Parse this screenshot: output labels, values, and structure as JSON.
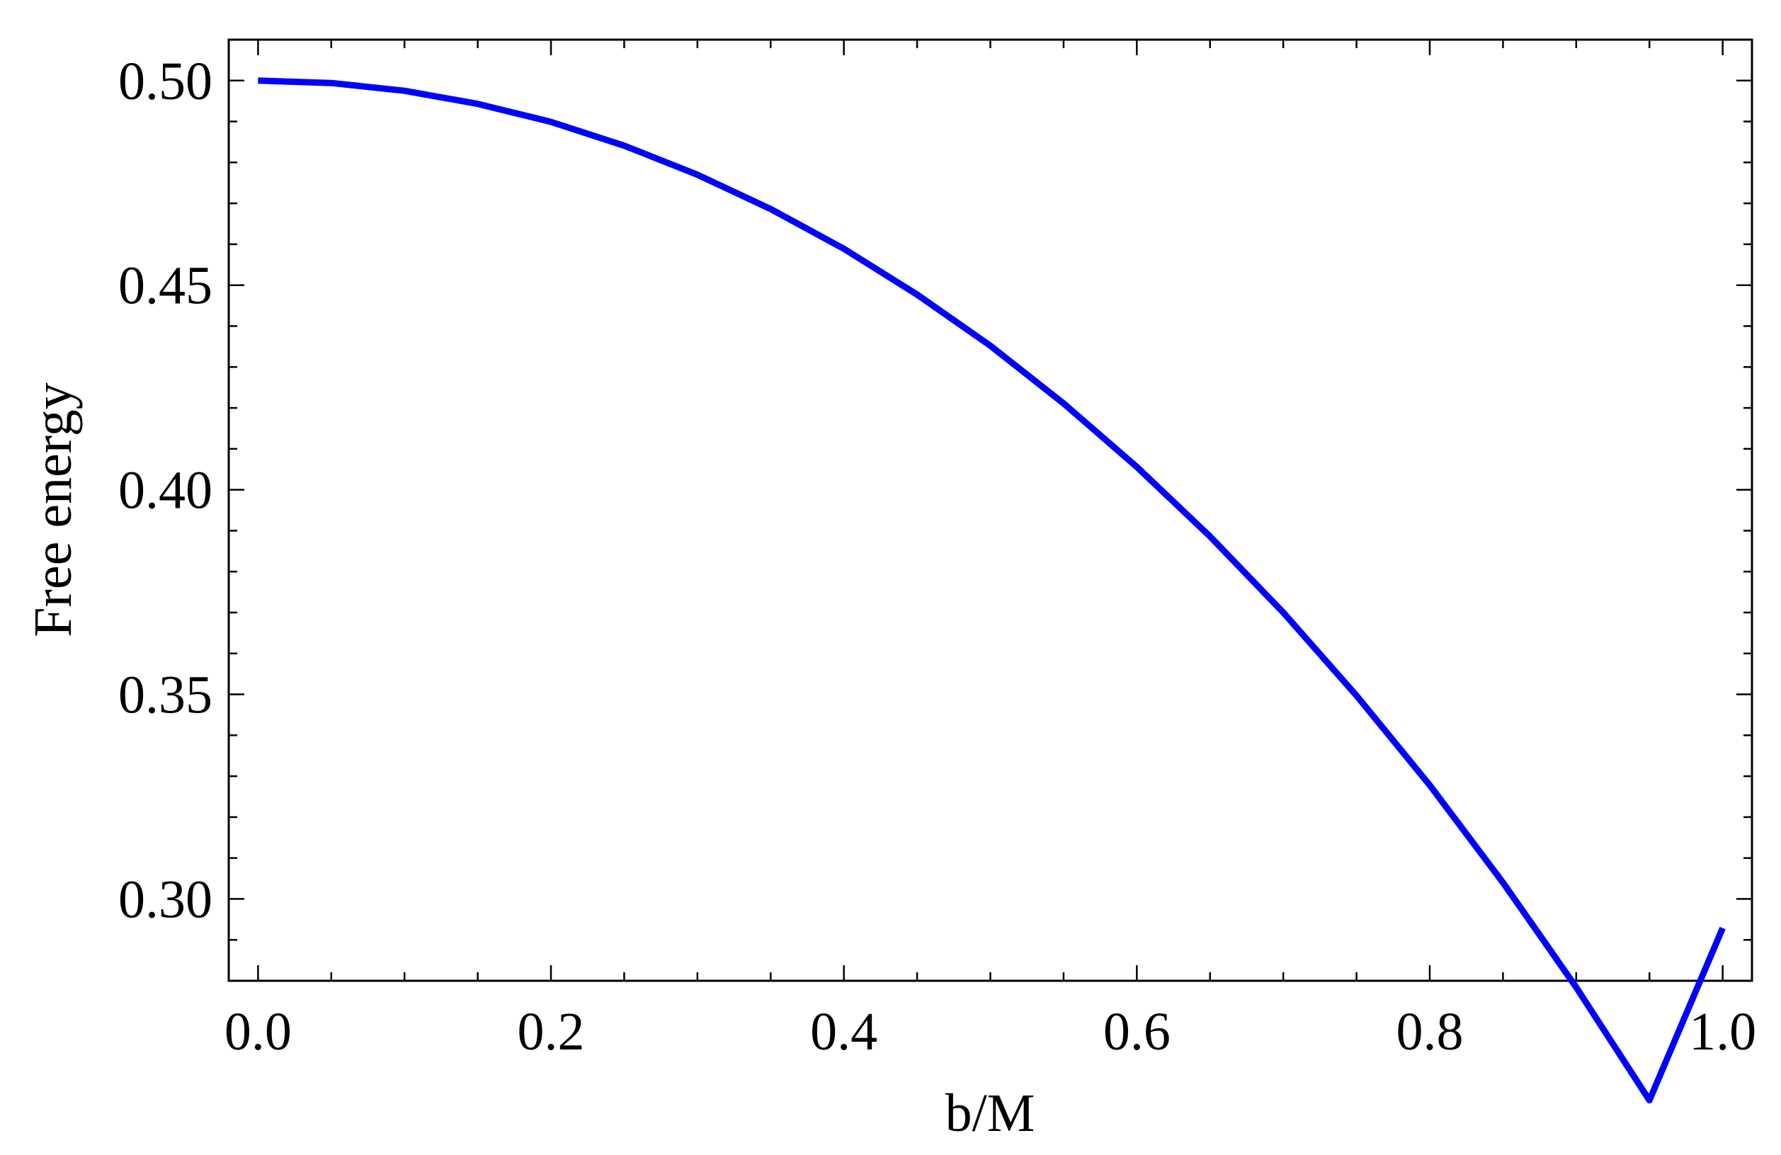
{
  "chart_data": {
    "type": "line",
    "title": "",
    "xlabel": "b/M",
    "ylabel": "Free energy",
    "xlim": [
      -0.02,
      1.02
    ],
    "ylim": [
      0.28,
      0.51
    ],
    "x_ticks": [
      0.0,
      0.2,
      0.4,
      0.6,
      0.8,
      1.0
    ],
    "x_tick_labels": [
      "0.0",
      "0.2",
      "0.4",
      "0.6",
      "0.8",
      "1.0"
    ],
    "y_ticks": [
      0.3,
      0.35,
      0.4,
      0.45,
      0.5
    ],
    "y_tick_labels": [
      "0.30",
      "0.35",
      "0.40",
      "0.45",
      "0.50"
    ],
    "x_minor_step": 0.05,
    "y_minor_step": 0.01,
    "grid": false,
    "series": [
      {
        "color": "#0000ff",
        "x": [
          0.0,
          0.05,
          0.1,
          0.15,
          0.2,
          0.25,
          0.3,
          0.35,
          0.4,
          0.45,
          0.5,
          0.55,
          0.6,
          0.65,
          0.7,
          0.75,
          0.8,
          0.85,
          0.9,
          0.95,
          1.0
        ],
        "y": [
          0.5,
          0.4994,
          0.4975,
          0.4943,
          0.4899,
          0.4841,
          0.477,
          0.4686,
          0.4589,
          0.4477,
          0.4352,
          0.4211,
          0.4056,
          0.3886,
          0.37,
          0.3497,
          0.3278,
          0.304,
          0.2784,
          0.2508,
          0.2929
        ]
      }
    ]
  }
}
